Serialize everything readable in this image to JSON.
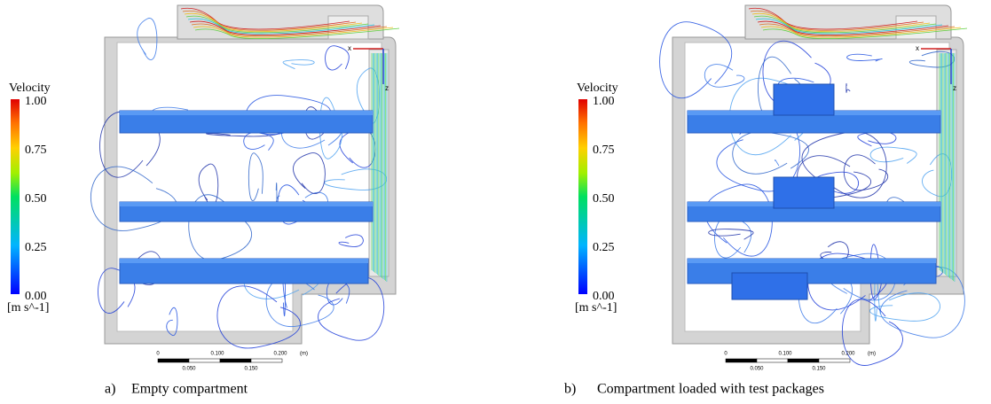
{
  "panels": [
    {
      "label": "a)",
      "caption": "Empty compartment",
      "legend": {
        "title": "Velocity",
        "ticks": [
          "1.00",
          "0.75",
          "0.50",
          "0.25",
          "0.00"
        ],
        "unit": "[m s^-1]"
      },
      "scale_bar": {
        "top": [
          "0",
          "0.100",
          "0.200",
          "(m)"
        ],
        "bottom": [
          "0.050",
          "0.150"
        ]
      },
      "axes": [
        "x",
        "z"
      ]
    },
    {
      "label": "b)",
      "caption": "Compartment loaded with test packages",
      "legend": {
        "title": "Velocity",
        "ticks": [
          "1.00",
          "0.75",
          "0.50",
          "0.25",
          "0.00"
        ],
        "unit": "[m s^-1]"
      },
      "scale_bar": {
        "top": [
          "0",
          "0.100",
          "0.200",
          "(m)"
        ],
        "bottom": [
          "0.050",
          "0.150"
        ]
      },
      "axes": [
        "x",
        "z"
      ]
    }
  ]
}
